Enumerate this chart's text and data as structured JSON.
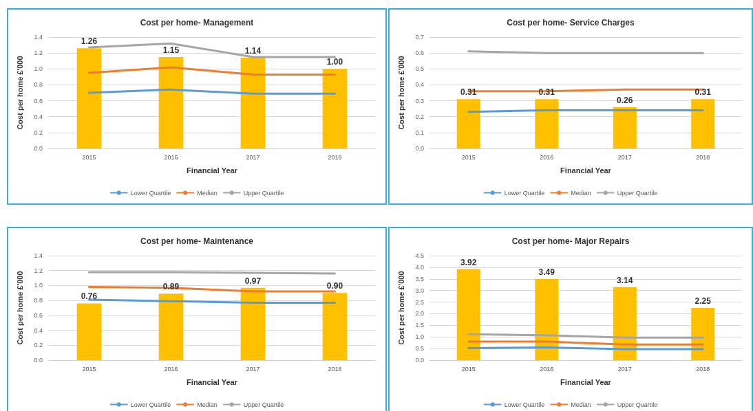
{
  "chart_data": [
    {
      "type": "bar",
      "title": "Cost per home- Management",
      "xlabel": "Financial Year",
      "ylabel": "Cost per home £'000",
      "categories": [
        "2015",
        "2016",
        "2017",
        "2018"
      ],
      "ylim": [
        0,
        1.4
      ],
      "yticks": [
        {
          "value": 0,
          "label": "0.0"
        },
        {
          "value": 0.2,
          "label": "0.2"
        },
        {
          "value": 0.4,
          "label": "0.4"
        },
        {
          "value": 0.6,
          "label": "0.6"
        },
        {
          "value": 0.8,
          "label": "0.8"
        },
        {
          "value": 1,
          "label": "1.0"
        },
        {
          "value": 1.2,
          "label": "1.2"
        },
        {
          "value": 1.4,
          "label": "1.4"
        }
      ],
      "grid": "y",
      "legend": "bottom",
      "series": [
        {
          "color": "#ffc000",
          "values": [
            1.26,
            1.15,
            1.14,
            1.0
          ],
          "value_labels": [
            "1.26",
            "1.15",
            "1.14",
            "1.00"
          ]
        },
        {
          "type": "line",
          "name": "Lower Quartile",
          "color": "#5b9bd5",
          "values": [
            0.7,
            0.74,
            0.69,
            0.69
          ]
        },
        {
          "type": "line",
          "name": "Median",
          "color": "#ed7d31",
          "values": [
            0.95,
            1.02,
            0.93,
            0.93
          ]
        },
        {
          "type": "line",
          "name": "Upper Quartile",
          "color": "#a5a5a5",
          "values": [
            1.27,
            1.32,
            1.15,
            1.15
          ]
        }
      ]
    },
    {
      "type": "bar",
      "title": "Cost per home- Service Charges",
      "xlabel": "Financial Year",
      "ylabel": "Cost per home £'000",
      "categories": [
        "2015",
        "2016",
        "2017",
        "2018"
      ],
      "ylim": [
        0,
        0.7
      ],
      "yticks": [
        {
          "value": 0,
          "label": "0.0"
        },
        0.1,
        0.2,
        0.3,
        0.4,
        0.5,
        0.6,
        0.7
      ],
      "grid": "y",
      "legend": "bottom",
      "series": [
        {
          "color": "#ffc000",
          "values": [
            0.31,
            0.31,
            0.26,
            0.31
          ],
          "value_labels": [
            "0.31",
            "0.31",
            "0.26",
            "0.31"
          ]
        },
        {
          "type": "line",
          "name": "Lower Quartile",
          "color": "#5b9bd5",
          "values": [
            0.23,
            0.24,
            0.24,
            0.24
          ]
        },
        {
          "type": "line",
          "name": "Median",
          "color": "#ed7d31",
          "values": [
            0.36,
            0.36,
            0.37,
            0.37
          ]
        },
        {
          "type": "line",
          "name": "Upper Quartile",
          "color": "#a5a5a5",
          "values": [
            0.61,
            0.6,
            0.6,
            0.6
          ]
        }
      ]
    },
    {
      "type": "bar",
      "title": "Cost per home- Maintenance",
      "xlabel": "Financial Year",
      "ylabel": "Cost per home £'000",
      "categories": [
        "2015",
        "2016",
        "2017",
        "2018"
      ],
      "ylim": [
        0,
        1.4
      ],
      "yticks": [
        {
          "value": 0,
          "label": "0.0"
        },
        {
          "value": 0.2,
          "label": "0.2"
        },
        {
          "value": 0.4,
          "label": "0.4"
        },
        {
          "value": 0.6,
          "label": "0.6"
        },
        {
          "value": 0.8,
          "label": "0.8"
        },
        {
          "value": 1,
          "label": "1.0"
        },
        {
          "value": 1.2,
          "label": "1.2"
        },
        {
          "value": 1.4,
          "label": "1.4"
        }
      ],
      "grid": "y",
      "legend": "bottom",
      "series": [
        {
          "color": "#ffc000",
          "values": [
            0.76,
            0.89,
            0.97,
            0.9
          ],
          "value_labels": [
            "0.76",
            "0.89",
            "0.97",
            "0.90"
          ]
        },
        {
          "type": "line",
          "name": "Lower Quartile",
          "color": "#5b9bd5",
          "values": [
            0.81,
            0.79,
            0.77,
            0.77
          ]
        },
        {
          "type": "line",
          "name": "Median",
          "color": "#ed7d31",
          "values": [
            0.98,
            0.97,
            0.92,
            0.92
          ]
        },
        {
          "type": "line",
          "name": "Upper Quartile",
          "color": "#a5a5a5",
          "values": [
            1.18,
            1.18,
            1.17,
            1.16
          ]
        }
      ]
    },
    {
      "type": "bar",
      "title": "Cost per home- Major Repairs",
      "xlabel": "Financial Year",
      "ylabel": "Cost per home £'000",
      "categories": [
        "2015",
        "2016",
        "2017",
        "2018"
      ],
      "ylim": [
        0,
        4.5
      ],
      "yticks": [
        {
          "value": 0,
          "label": "0.0"
        },
        {
          "value": 0.5,
          "label": "0.5"
        },
        {
          "value": 1,
          "label": "1.0"
        },
        {
          "value": 1.5,
          "label": "1.5"
        },
        {
          "value": 2,
          "label": "2.0"
        },
        {
          "value": 2.5,
          "label": "2.5"
        },
        {
          "value": 3,
          "label": "3.0"
        },
        {
          "value": 3.5,
          "label": "3.5"
        },
        {
          "value": 4,
          "label": "4.0"
        },
        {
          "value": 4.5,
          "label": "4.5"
        }
      ],
      "grid": "y",
      "legend": "bottom",
      "series": [
        {
          "color": "#ffc000",
          "values": [
            3.92,
            3.49,
            3.14,
            2.25
          ],
          "value_labels": [
            "3.92",
            "3.49",
            "3.14",
            "2.25"
          ]
        },
        {
          "type": "line",
          "name": "Lower Quartile",
          "color": "#5b9bd5",
          "values": [
            0.52,
            0.55,
            0.47,
            0.47
          ]
        },
        {
          "type": "line",
          "name": "Median",
          "color": "#ed7d31",
          "values": [
            0.8,
            0.8,
            0.67,
            0.67
          ]
        },
        {
          "type": "line",
          "name": "Upper Quartile",
          "color": "#a5a5a5",
          "values": [
            1.12,
            1.07,
            0.97,
            0.97
          ]
        }
      ]
    }
  ]
}
